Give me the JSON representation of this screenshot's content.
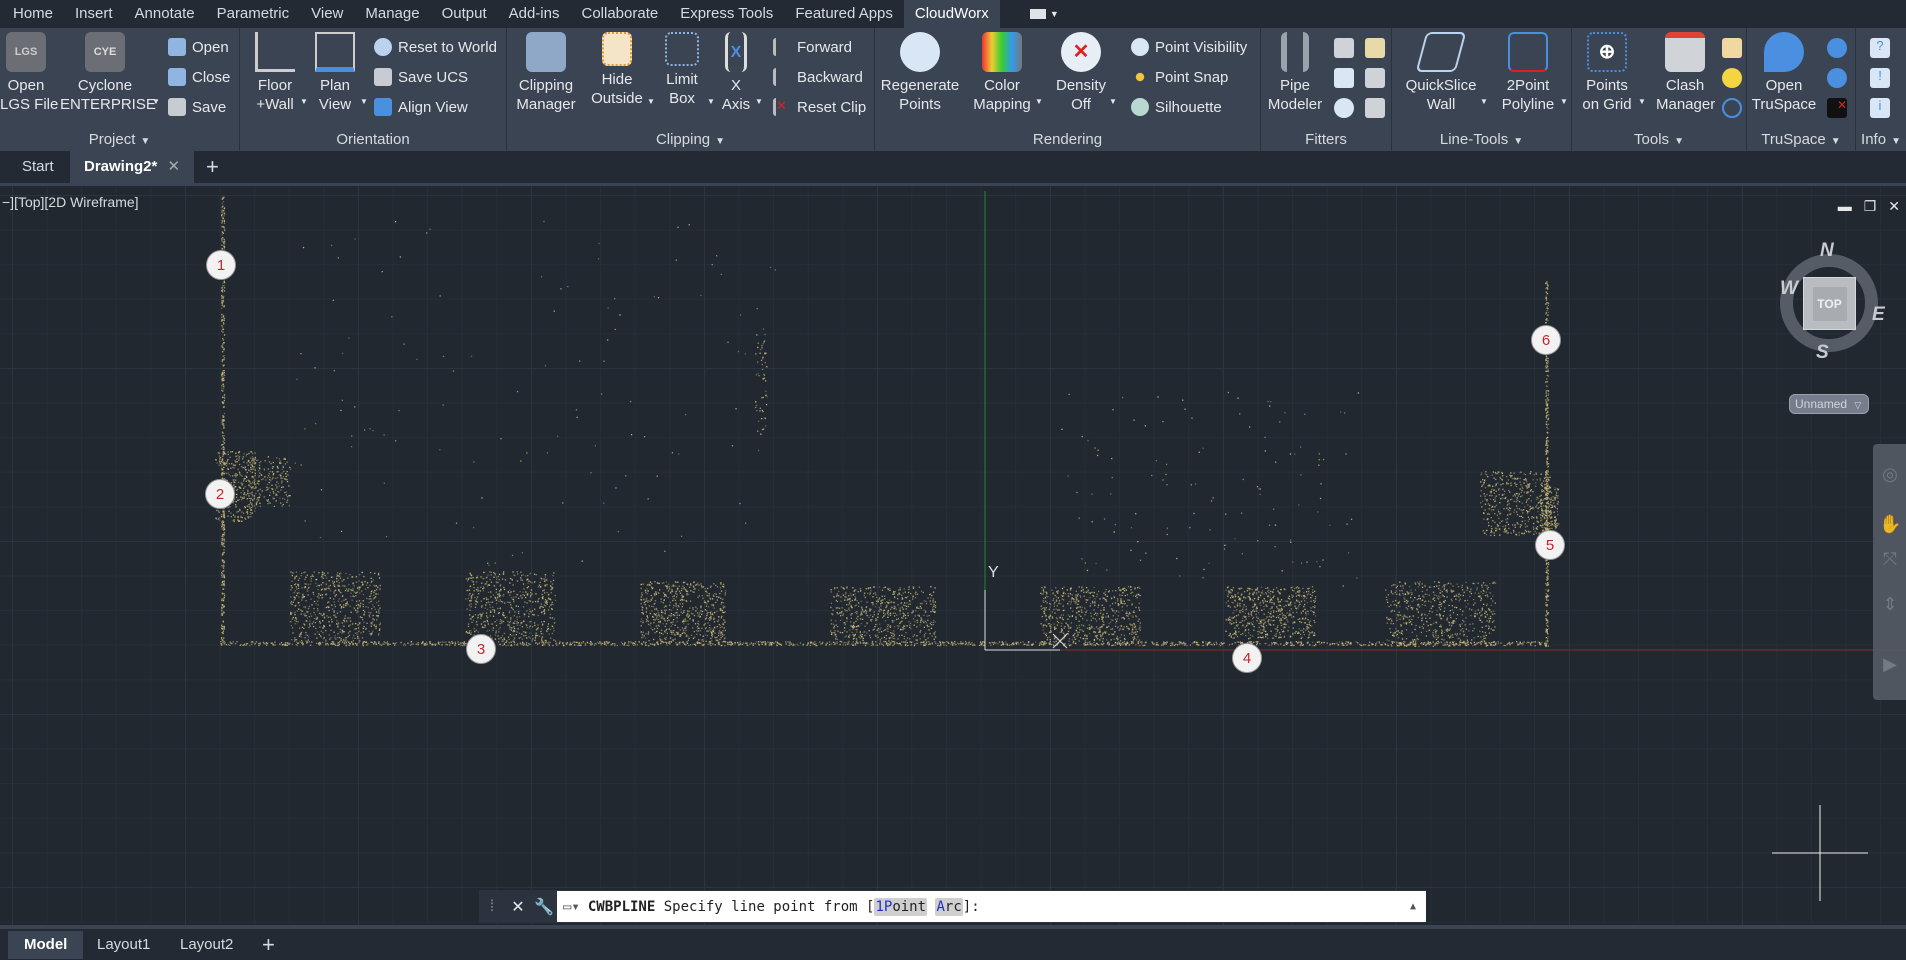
{
  "menu_tabs": [
    "Home",
    "Insert",
    "Annotate",
    "Parametric",
    "View",
    "Manage",
    "Output",
    "Add-ins",
    "Collaborate",
    "Express Tools",
    "Featured Apps",
    "CloudWorx"
  ],
  "active_menu_tab": "CloudWorx",
  "ribbon": {
    "project": {
      "label": "Project",
      "open_lgs": "Open\nLGS File",
      "lgs_icon_text": "LGS",
      "cyclone": "Cyclone\nENTERPRISE",
      "cye_icon_text": "CYE",
      "open": "Open",
      "close": "Close",
      "save": "Save"
    },
    "orientation": {
      "label": "Orientation",
      "floor_wall": "Floor\n+Wall",
      "plan_view": "Plan\nView",
      "reset_world": "Reset to World",
      "save_ucs": "Save UCS",
      "align_view": "Align View"
    },
    "clipping": {
      "label": "Clipping",
      "manager": "Clipping\nManager",
      "hide_outside": "Hide\nOutside",
      "limit_box": "Limit\nBox",
      "x_axis": "X\nAxis",
      "forward": "Forward",
      "backward": "Backward",
      "reset_clip": "Reset Clip"
    },
    "rendering": {
      "label": "Rendering",
      "regenerate": "Regenerate\nPoints",
      "color_mapping": "Color\nMapping",
      "density": "Density\nOff",
      "point_visibility": "Point Visibility",
      "point_snap": "Point Snap",
      "silhouette": "Silhouette"
    },
    "fitters": {
      "label": "Fitters",
      "pipe_modeler": "Pipe\nModeler"
    },
    "line_tools": {
      "label": "Line-Tools",
      "quickslice": "QuickSlice\nWall",
      "twopoint": "2Point\nPolyline"
    },
    "tools": {
      "label": "Tools",
      "points_grid": "Points\non Grid",
      "clash": "Clash\nManager"
    },
    "truspace": {
      "label": "TruSpace",
      "open": "Open\nTruSpace"
    },
    "info": {
      "label": "Info"
    }
  },
  "file_tabs": {
    "start": "Start",
    "drawing": "Drawing2*"
  },
  "viewport": {
    "label": "−][Top][2D Wireframe]",
    "markers": [
      "1",
      "2",
      "3",
      "4",
      "5",
      "6"
    ],
    "ucs_y": "Y",
    "viewcube": {
      "face": "TOP",
      "n": "N",
      "s": "S",
      "e": "E",
      "w": "W"
    },
    "ucs_menu": "Unnamed",
    "point_color": "#c9b87a",
    "y_axis_color": "#1f8a2e",
    "x_axis_color": "#8a2a2a"
  },
  "command_line": {
    "command": "CWBPLINE",
    "prompt": "Specify line point from [",
    "opt1_hot": "1P",
    "opt1_rest": "oint",
    "opt2_hot": "A",
    "opt2_rest": "rc",
    "suffix": "]:"
  },
  "layout_tabs": {
    "model": "Model",
    "layout1": "Layout1",
    "layout2": "Layout2"
  }
}
